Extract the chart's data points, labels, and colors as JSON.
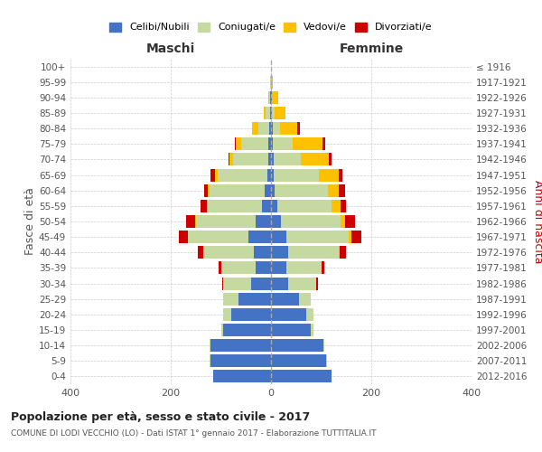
{
  "age_groups": [
    "0-4",
    "5-9",
    "10-14",
    "15-19",
    "20-24",
    "25-29",
    "30-34",
    "35-39",
    "40-44",
    "45-49",
    "50-54",
    "55-59",
    "60-64",
    "65-69",
    "70-74",
    "75-79",
    "80-84",
    "85-89",
    "90-94",
    "95-99",
    "100+"
  ],
  "birth_years": [
    "2012-2016",
    "2007-2011",
    "2002-2006",
    "1997-2001",
    "1992-1996",
    "1987-1991",
    "1982-1986",
    "1977-1981",
    "1972-1976",
    "1967-1971",
    "1962-1966",
    "1957-1961",
    "1952-1956",
    "1947-1951",
    "1942-1946",
    "1937-1941",
    "1932-1936",
    "1927-1931",
    "1922-1926",
    "1917-1921",
    "≤ 1916"
  ],
  "maschi": {
    "celibi": [
      115,
      120,
      120,
      95,
      80,
      65,
      40,
      30,
      35,
      45,
      30,
      18,
      13,
      7,
      5,
      5,
      3,
      2,
      1,
      0,
      0
    ],
    "coniugati": [
      1,
      2,
      2,
      5,
      15,
      30,
      55,
      70,
      100,
      120,
      120,
      108,
      110,
      100,
      70,
      55,
      22,
      8,
      3,
      1,
      0
    ],
    "vedovi": [
      0,
      0,
      0,
      0,
      1,
      0,
      0,
      0,
      1,
      1,
      2,
      2,
      3,
      5,
      8,
      10,
      12,
      5,
      2,
      0,
      0
    ],
    "divorziati": [
      0,
      0,
      0,
      0,
      0,
      0,
      2,
      5,
      10,
      18,
      18,
      12,
      8,
      8,
      2,
      2,
      0,
      0,
      0,
      0,
      0
    ]
  },
  "femmine": {
    "nubili": [
      120,
      110,
      105,
      80,
      70,
      55,
      35,
      30,
      35,
      30,
      20,
      12,
      8,
      5,
      5,
      3,
      3,
      2,
      1,
      0,
      0
    ],
    "coniugate": [
      1,
      1,
      2,
      5,
      15,
      25,
      55,
      70,
      100,
      125,
      118,
      108,
      105,
      90,
      55,
      40,
      15,
      5,
      1,
      0,
      0
    ],
    "vedove": [
      0,
      0,
      0,
      0,
      0,
      0,
      0,
      1,
      2,
      5,
      10,
      18,
      22,
      40,
      55,
      60,
      35,
      22,
      12,
      3,
      0
    ],
    "divorziate": [
      0,
      0,
      0,
      0,
      0,
      0,
      3,
      5,
      12,
      20,
      20,
      12,
      12,
      8,
      5,
      5,
      5,
      0,
      0,
      0,
      0
    ]
  },
  "colors": {
    "celibi": "#4472c4",
    "coniugati": "#c5d9a0",
    "vedovi": "#ffc000",
    "divorziati": "#cc0000"
  },
  "legend_labels": [
    "Celibi/Nubili",
    "Coniugati/e",
    "Vedovi/e",
    "Divorziati/e"
  ],
  "title": "Popolazione per età, sesso e stato civile - 2017",
  "subtitle": "COMUNE DI LODI VECCHIO (LO) - Dati ISTAT 1° gennaio 2017 - Elaborazione TUTTITALIA.IT",
  "xlabel_maschi": "Maschi",
  "xlabel_femmine": "Femmine",
  "ylabel_left": "Fasce di età",
  "ylabel_right": "Anni di nascita",
  "xlim": 400,
  "bg_color": "#ffffff",
  "grid_color": "#cccccc"
}
